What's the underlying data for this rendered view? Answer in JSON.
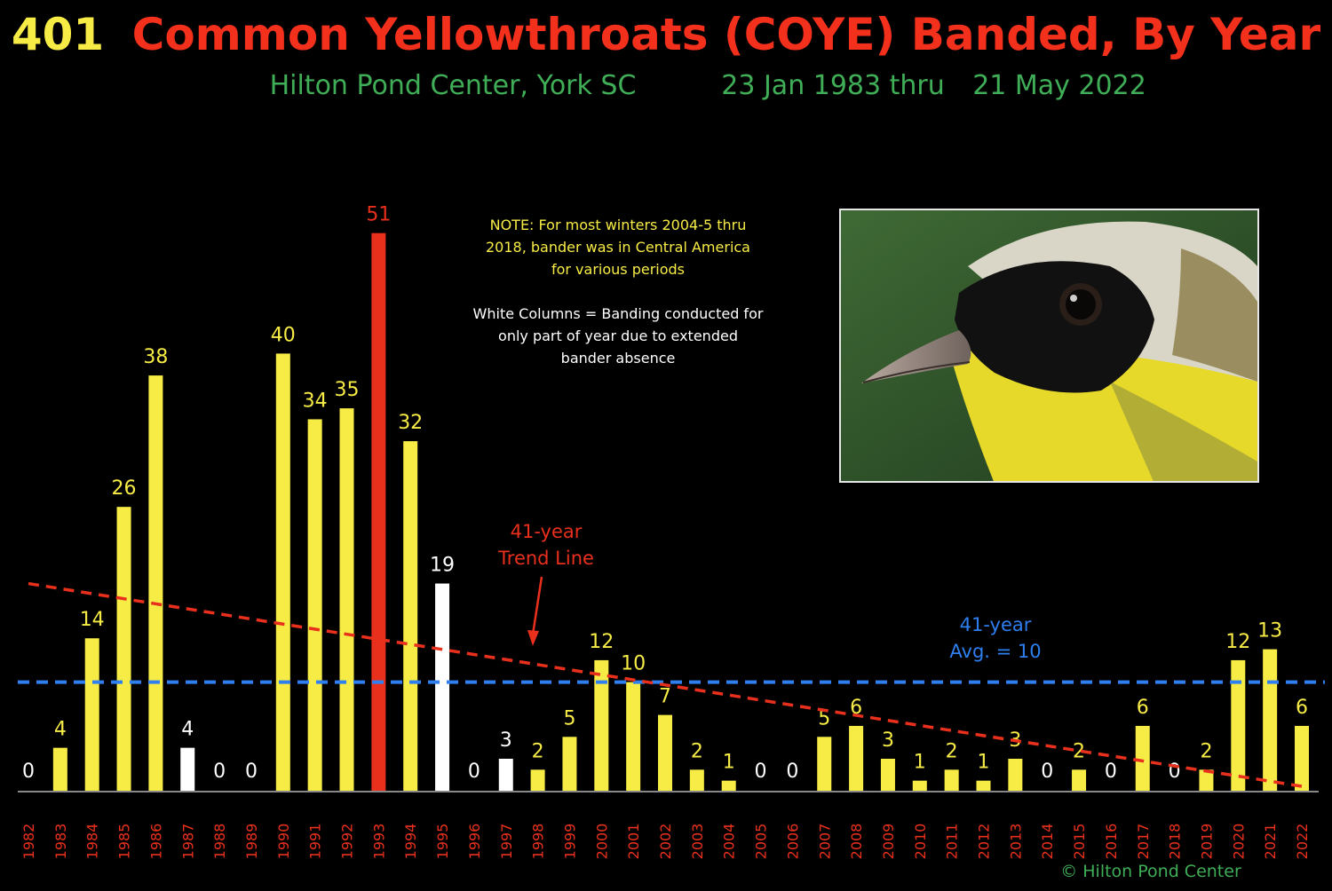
{
  "header": {
    "title_count": "401",
    "title_rest": "Common Yellowthroats (COYE) Banded, By Year",
    "subtitle_location": "Hilton Pond Center, York SC",
    "subtitle_start": "23 Jan 1983 thru",
    "subtitle_end": "21 May 2022"
  },
  "note": {
    "lines": [
      "NOTE: For most winters 2004-5 thru",
      "2018, bander was in Central America",
      "for various periods"
    ]
  },
  "white_note": {
    "lines": [
      "White Columns = Banding conducted for",
      "only part of year due to extended",
      "bander absence"
    ]
  },
  "trend_label": {
    "lines": [
      "41-year",
      "Trend Line"
    ]
  },
  "avg_label": {
    "lines": [
      "41-year",
      "Avg. = 10"
    ]
  },
  "copyright": "© Hilton Pond Center",
  "photo_icon": "common-yellowthroat-photo",
  "colors": {
    "background": "#000000",
    "bar_full_year": "#f7ec45",
    "bar_partial_year": "#ffffff",
    "bar_peak": "#e8301d",
    "title_count": "#f7ec45",
    "title_rest": "#f2301c",
    "subtitle": "#3fae57",
    "year_labels": "#e8301d",
    "note_text": "#f7ec45",
    "white_note_text": "#ffffff",
    "trend_line": "#e8301d",
    "avg_line": "#2f7ff0",
    "axis": "#888888"
  },
  "chart_data": {
    "type": "bar",
    "categories": [
      "1982",
      "1983",
      "1984",
      "1985",
      "1986",
      "1987",
      "1988",
      "1989",
      "1990",
      "1991",
      "1992",
      "1993",
      "1994",
      "1995",
      "1996",
      "1997",
      "1998",
      "1999",
      "2000",
      "2001",
      "2002",
      "2003",
      "2004",
      "2005",
      "2006",
      "2007",
      "2008",
      "2009",
      "2010",
      "2011",
      "2012",
      "2013",
      "2014",
      "2015",
      "2016",
      "2017",
      "2018",
      "2019",
      "2020",
      "2021",
      "2022"
    ],
    "values": [
      0,
      4,
      14,
      26,
      38,
      4,
      0,
      0,
      40,
      34,
      35,
      51,
      32,
      19,
      0,
      3,
      2,
      5,
      12,
      10,
      7,
      2,
      1,
      0,
      0,
      5,
      6,
      3,
      1,
      2,
      1,
      3,
      0,
      2,
      0,
      6,
      0,
      2,
      12,
      13,
      6
    ],
    "partial_year": [
      "1987",
      "1995",
      "1997"
    ],
    "highlight": "1993",
    "ylim": [
      0,
      53
    ],
    "average": 10,
    "trend_line": {
      "from": [
        "1982",
        19
      ],
      "to": [
        "2022",
        0
      ]
    }
  }
}
